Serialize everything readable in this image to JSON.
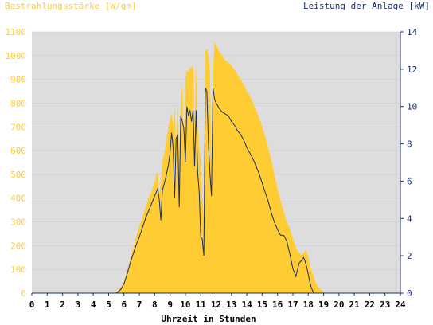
{
  "chart_data": {
    "type": "area",
    "left_axis_label": "Bestrahlungsstärke [W/qm]",
    "right_axis_label": "Leistung der Anlage [kW]",
    "xlabel": "Uhrzeit in Stunden",
    "xlim": [
      0,
      24
    ],
    "ylim_left": [
      0,
      1100
    ],
    "ylim_right": [
      0,
      14
    ],
    "x_ticks": [
      "0",
      "1",
      "2",
      "3",
      "4",
      "5",
      "6",
      "7",
      "8",
      "9",
      "10",
      "11",
      "12",
      "13",
      "14",
      "15",
      "16",
      "17",
      "18",
      "19",
      "20",
      "21",
      "22",
      "23",
      "24"
    ],
    "y_ticks_left": [
      "0",
      "100",
      "200",
      "300",
      "400",
      "500",
      "600",
      "700",
      "800",
      "900",
      "1000",
      "1100"
    ],
    "y_ticks_right": [
      "0",
      "2",
      "4",
      "6",
      "8",
      "10",
      "12",
      "14"
    ],
    "colors": {
      "irradiance": "#ffcc33",
      "power": "#1a2e6e",
      "plot_bg": "#dddddd"
    },
    "series": [
      {
        "name": "Bestrahlungsstärke",
        "axis": "left",
        "x": [
          0,
          5.4,
          5.6,
          5.8,
          6.0,
          6.2,
          6.4,
          6.6,
          6.8,
          7.0,
          7.2,
          7.4,
          7.6,
          7.8,
          8.0,
          8.1,
          8.2,
          8.3,
          8.4,
          8.5,
          8.6,
          8.7,
          8.8,
          8.9,
          9.0,
          9.1,
          9.2,
          9.3,
          9.4,
          9.5,
          9.6,
          9.7,
          9.8,
          9.9,
          10.0,
          10.1,
          10.2,
          10.3,
          10.4,
          10.5,
          10.6,
          10.7,
          10.8,
          10.9,
          11.0,
          11.1,
          11.2,
          11.3,
          11.4,
          11.5,
          11.6,
          11.7,
          11.8,
          11.9,
          12.0,
          12.1,
          12.2,
          12.4,
          12.6,
          12.8,
          13.0,
          13.2,
          13.4,
          13.6,
          13.8,
          14.0,
          14.2,
          14.4,
          14.6,
          14.8,
          15.0,
          15.2,
          15.4,
          15.6,
          15.8,
          16.0,
          16.2,
          16.4,
          16.6,
          16.8,
          17.0,
          17.2,
          17.4,
          17.6,
          17.8,
          17.9,
          18.0,
          18.1,
          18.2,
          18.3,
          18.4,
          18.5,
          18.6,
          18.8,
          19.0,
          19.2,
          19.5,
          19.8,
          20.0,
          24
        ],
        "values": [
          0,
          0,
          10,
          25,
          50,
          90,
          140,
          190,
          240,
          280,
          320,
          360,
          400,
          430,
          470,
          500,
          510,
          420,
          460,
          560,
          580,
          620,
          660,
          700,
          730,
          760,
          700,
          800,
          600,
          800,
          560,
          820,
          880,
          600,
          900,
          940,
          930,
          950,
          950,
          960,
          720,
          960,
          700,
          620,
          560,
          400,
          300,
          1020,
          1030,
          1000,
          930,
          500,
          940,
          1060,
          1050,
          1030,
          1020,
          1000,
          980,
          970,
          960,
          940,
          920,
          900,
          880,
          850,
          830,
          800,
          770,
          740,
          700,
          660,
          610,
          560,
          500,
          440,
          390,
          345,
          300,
          270,
          230,
          190,
          170,
          160,
          180,
          175,
          150,
          120,
          100,
          80,
          60,
          45,
          30,
          15,
          5,
          0,
          0,
          0,
          0,
          0
        ]
      },
      {
        "name": "Leistung der Anlage",
        "axis": "right",
        "x": [
          0,
          5.5,
          5.8,
          6.0,
          6.2,
          6.4,
          6.6,
          6.8,
          7.0,
          7.2,
          7.4,
          7.6,
          7.8,
          8.0,
          8.2,
          8.3,
          8.4,
          8.5,
          8.6,
          8.7,
          8.8,
          8.9,
          9.0,
          9.1,
          9.2,
          9.3,
          9.4,
          9.5,
          9.6,
          9.7,
          9.8,
          9.9,
          10.0,
          10.1,
          10.2,
          10.3,
          10.4,
          10.5,
          10.6,
          10.7,
          10.8,
          10.9,
          11.0,
          11.1,
          11.2,
          11.3,
          11.4,
          11.5,
          11.6,
          11.7,
          11.8,
          11.9,
          12.0,
          12.2,
          12.4,
          12.6,
          12.8,
          13.0,
          13.2,
          13.4,
          13.6,
          13.8,
          14.0,
          14.2,
          14.4,
          14.6,
          14.8,
          15.0,
          15.2,
          15.4,
          15.6,
          15.8,
          16.0,
          16.2,
          16.4,
          16.6,
          16.8,
          17.0,
          17.2,
          17.4,
          17.6,
          17.7,
          17.8,
          17.9,
          18.0,
          18.1,
          18.2,
          18.3,
          18.4,
          18.5,
          18.6,
          18.8,
          19.0,
          19.2,
          19.5,
          20.0,
          24
        ],
        "values": [
          0,
          0,
          0.2,
          0.5,
          1.0,
          1.6,
          2.1,
          2.6,
          3.0,
          3.5,
          4.0,
          4.4,
          4.8,
          5.2,
          5.6,
          5.0,
          3.9,
          5.5,
          5.8,
          6.1,
          6.5,
          6.9,
          7.5,
          8.6,
          7.8,
          5.1,
          8.3,
          8.5,
          4.6,
          9.5,
          9.2,
          8.8,
          7.0,
          10.0,
          9.5,
          9.8,
          9.2,
          9.8,
          6.8,
          9.8,
          6.5,
          5.4,
          3.0,
          2.9,
          2.0,
          11.0,
          10.8,
          8.0,
          6.4,
          5.2,
          11.0,
          10.4,
          10.2,
          9.9,
          9.7,
          9.6,
          9.5,
          9.2,
          9.0,
          8.7,
          8.5,
          8.2,
          7.8,
          7.5,
          7.2,
          6.8,
          6.4,
          5.9,
          5.4,
          4.9,
          4.3,
          3.8,
          3.4,
          3.1,
          3.1,
          2.8,
          2.1,
          1.3,
          0.9,
          1.6,
          1.8,
          1.9,
          1.7,
          1.4,
          1.0,
          0.6,
          0.3,
          0.1,
          0,
          0,
          0,
          0,
          0,
          0,
          0,
          0,
          0
        ]
      }
    ]
  }
}
